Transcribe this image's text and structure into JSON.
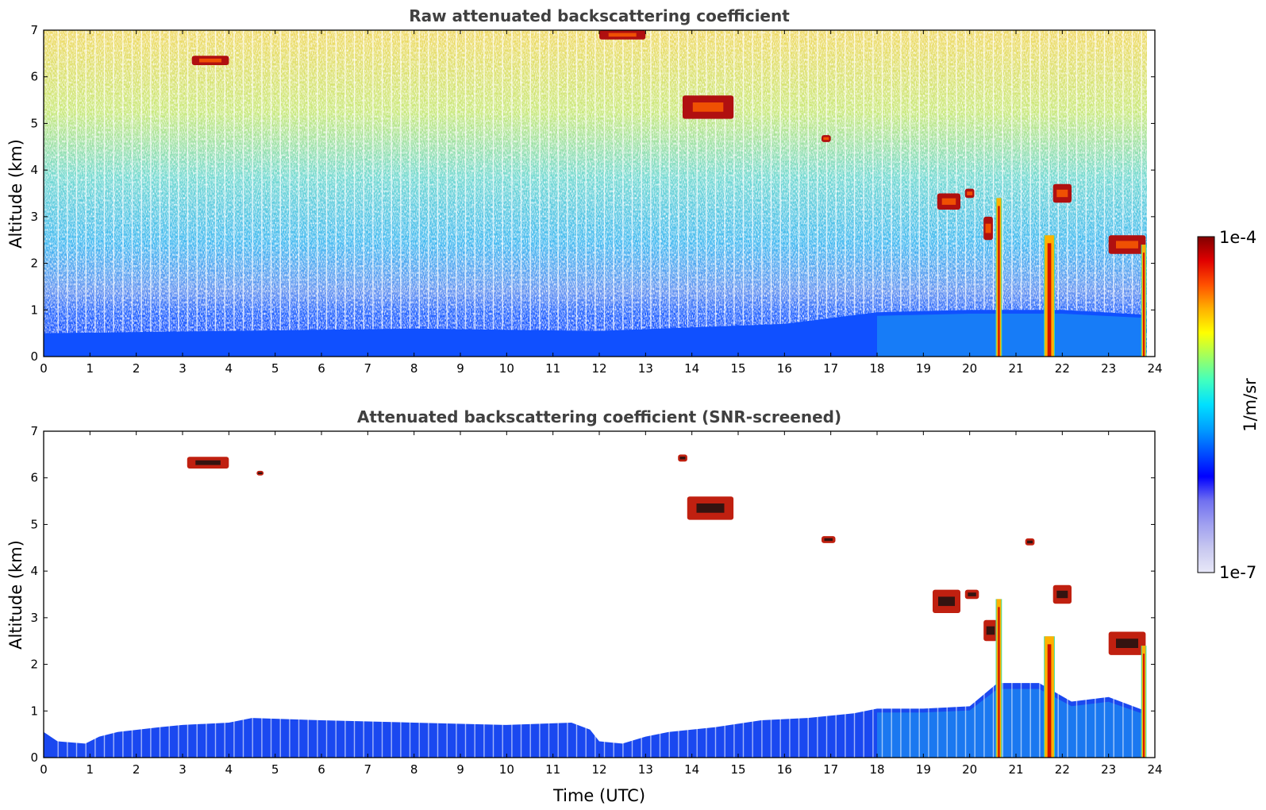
{
  "chart_data": [
    {
      "type": "heatmap",
      "title": "Raw attenuated backscattering coefficient",
      "xlabel": "",
      "ylabel": "Altitude (km)",
      "xlim": [
        0,
        24
      ],
      "ylim": [
        0,
        7
      ],
      "xticks": [
        "0",
        "1",
        "2",
        "3",
        "4",
        "5",
        "6",
        "7",
        "8",
        "9",
        "10",
        "11",
        "12",
        "13",
        "14",
        "15",
        "16",
        "17",
        "18",
        "19",
        "20",
        "21",
        "22",
        "23",
        "24"
      ],
      "yticks": [
        "0",
        "1",
        "2",
        "3",
        "4",
        "5",
        "6",
        "7"
      ],
      "boundary_layer_top_km": [
        {
          "t": 0,
          "h": 0.5
        },
        {
          "t": 4,
          "h": 0.55
        },
        {
          "t": 8,
          "h": 0.6
        },
        {
          "t": 12,
          "h": 0.55
        },
        {
          "t": 16,
          "h": 0.7
        },
        {
          "t": 18,
          "h": 0.95
        },
        {
          "t": 20,
          "h": 1.0
        },
        {
          "t": 22,
          "h": 1.0
        },
        {
          "t": 23.8,
          "h": 0.9
        }
      ],
      "cloud_features": [
        {
          "t0": 3.2,
          "t1": 4.0,
          "h0": 6.25,
          "h1": 6.45
        },
        {
          "t0": 12.0,
          "t1": 13.0,
          "h0": 6.8,
          "h1": 7.0
        },
        {
          "t0": 13.8,
          "t1": 14.9,
          "h0": 5.1,
          "h1": 5.6
        },
        {
          "t0": 16.8,
          "t1": 17.0,
          "h0": 4.6,
          "h1": 4.75
        },
        {
          "t0": 19.3,
          "t1": 19.8,
          "h0": 3.15,
          "h1": 3.5
        },
        {
          "t0": 19.9,
          "t1": 20.1,
          "h0": 3.4,
          "h1": 3.6
        },
        {
          "t0": 20.3,
          "t1": 20.5,
          "h0": 2.5,
          "h1": 3.0
        },
        {
          "t0": 21.8,
          "t1": 22.2,
          "h0": 3.3,
          "h1": 3.7
        },
        {
          "t0": 23.0,
          "t1": 23.8,
          "h0": 2.2,
          "h1": 2.6
        }
      ],
      "precipitation_columns": [
        {
          "t0": 20.58,
          "t1": 20.68,
          "h_top": 3.4
        },
        {
          "t0": 21.62,
          "t1": 21.82,
          "h_top": 2.6
        },
        {
          "t0": 23.72,
          "t1": 23.8,
          "h_top": 2.4
        }
      ]
    },
    {
      "type": "heatmap",
      "title": "Attenuated backscattering coefficient (SNR-screened)",
      "xlabel": "Time (UTC)",
      "ylabel": "Altitude (km)",
      "xlim": [
        0,
        24
      ],
      "ylim": [
        0,
        7
      ],
      "xticks": [
        "0",
        "1",
        "2",
        "3",
        "4",
        "5",
        "6",
        "7",
        "8",
        "9",
        "10",
        "11",
        "12",
        "13",
        "14",
        "15",
        "16",
        "17",
        "18",
        "19",
        "20",
        "21",
        "22",
        "23",
        "24"
      ],
      "yticks": [
        "0",
        "1",
        "2",
        "3",
        "4",
        "5",
        "6",
        "7"
      ],
      "boundary_layer_top_km": [
        {
          "t": 0,
          "h": 0.55
        },
        {
          "t": 0.3,
          "h": 0.35
        },
        {
          "t": 0.9,
          "h": 0.3
        },
        {
          "t": 1.2,
          "h": 0.45
        },
        {
          "t": 1.6,
          "h": 0.55
        },
        {
          "t": 2.5,
          "h": 0.65
        },
        {
          "t": 3.0,
          "h": 0.7
        },
        {
          "t": 4.0,
          "h": 0.75
        },
        {
          "t": 4.5,
          "h": 0.85
        },
        {
          "t": 6.0,
          "h": 0.8
        },
        {
          "t": 8.0,
          "h": 0.75
        },
        {
          "t": 10.0,
          "h": 0.7
        },
        {
          "t": 11.4,
          "h": 0.75
        },
        {
          "t": 11.8,
          "h": 0.6
        },
        {
          "t": 12.0,
          "h": 0.35
        },
        {
          "t": 12.5,
          "h": 0.3
        },
        {
          "t": 13.0,
          "h": 0.45
        },
        {
          "t": 13.5,
          "h": 0.55
        },
        {
          "t": 14.5,
          "h": 0.65
        },
        {
          "t": 15.5,
          "h": 0.8
        },
        {
          "t": 16.5,
          "h": 0.85
        },
        {
          "t": 17.5,
          "h": 0.95
        },
        {
          "t": 18.0,
          "h": 1.05
        },
        {
          "t": 19.0,
          "h": 1.05
        },
        {
          "t": 20.0,
          "h": 1.1
        },
        {
          "t": 20.6,
          "h": 1.6
        },
        {
          "t": 21.5,
          "h": 1.6
        },
        {
          "t": 22.2,
          "h": 1.2
        },
        {
          "t": 23.0,
          "h": 1.3
        },
        {
          "t": 23.8,
          "h": 1.0
        }
      ],
      "cloud_features": [
        {
          "t0": 3.1,
          "t1": 4.0,
          "h0": 6.2,
          "h1": 6.45
        },
        {
          "t0": 4.6,
          "t1": 4.75,
          "h0": 6.05,
          "h1": 6.15
        },
        {
          "t0": 13.7,
          "t1": 13.9,
          "h0": 6.35,
          "h1": 6.5
        },
        {
          "t0": 13.9,
          "t1": 14.9,
          "h0": 5.1,
          "h1": 5.6
        },
        {
          "t0": 16.8,
          "t1": 17.1,
          "h0": 4.6,
          "h1": 4.75
        },
        {
          "t0": 19.2,
          "t1": 19.8,
          "h0": 3.1,
          "h1": 3.6
        },
        {
          "t0": 19.9,
          "t1": 20.2,
          "h0": 3.4,
          "h1": 3.6
        },
        {
          "t0": 20.3,
          "t1": 20.6,
          "h0": 2.5,
          "h1": 2.95
        },
        {
          "t0": 21.2,
          "t1": 21.4,
          "h0": 4.55,
          "h1": 4.7
        },
        {
          "t0": 21.8,
          "t1": 22.2,
          "h0": 3.3,
          "h1": 3.7
        },
        {
          "t0": 23.0,
          "t1": 23.8,
          "h0": 2.2,
          "h1": 2.7
        }
      ],
      "precipitation_columns": [
        {
          "t0": 20.58,
          "t1": 20.68,
          "h_top": 3.4
        },
        {
          "t0": 21.62,
          "t1": 21.82,
          "h_top": 2.6
        },
        {
          "t0": 23.72,
          "t1": 23.8,
          "h_top": 2.4
        }
      ]
    }
  ],
  "colorbar": {
    "label": "1/m/sr",
    "min_label": "1e-7",
    "max_label": "1e-4",
    "scale": "log",
    "colormap": "jet",
    "colors": [
      "#e8e8f8",
      "#c8c8f0",
      "#a0a0f0",
      "#7070f0",
      "#0000ff",
      "#0050ff",
      "#00a0ff",
      "#00e0ff",
      "#40ffc0",
      "#a0ff60",
      "#ffff00",
      "#ffb000",
      "#ff5000",
      "#e00000",
      "#800000"
    ]
  }
}
